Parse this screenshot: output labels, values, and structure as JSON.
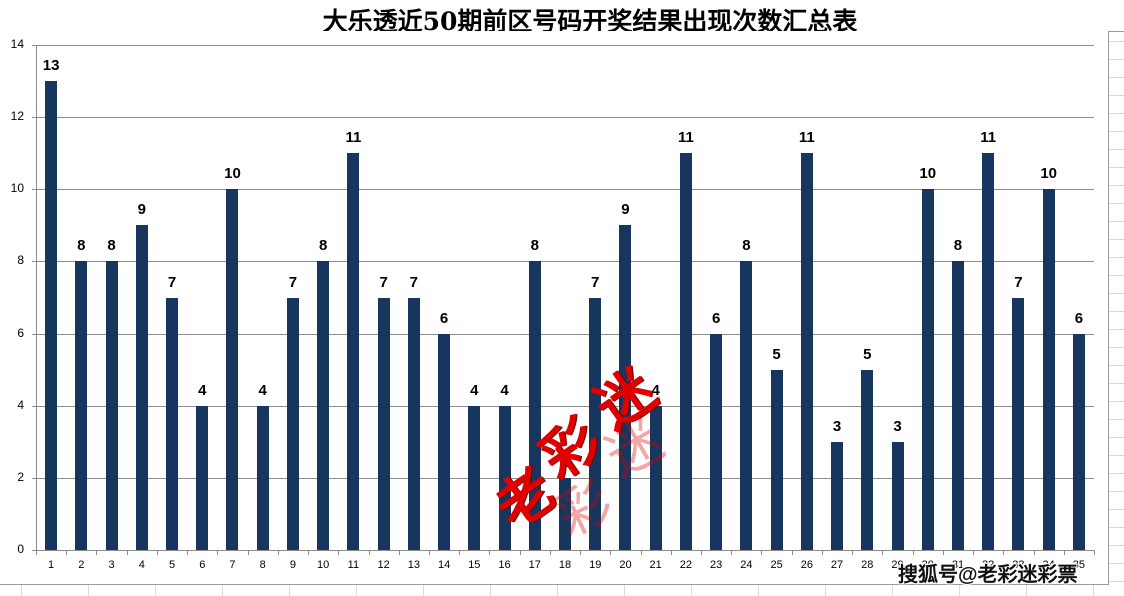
{
  "chart_data": {
    "type": "bar",
    "title": "大乐透近50期前区号码开奖结果出现次数汇总表",
    "xlabel": "",
    "ylabel": "",
    "ylim": [
      0,
      14
    ],
    "yticks": [
      0,
      2,
      4,
      6,
      8,
      10,
      12,
      14
    ],
    "grid": true,
    "legend": "none",
    "bar_color": "#17365d",
    "categories": [
      "1",
      "2",
      "3",
      "4",
      "5",
      "6",
      "7",
      "8",
      "9",
      "10",
      "11",
      "12",
      "13",
      "14",
      "15",
      "16",
      "17",
      "18",
      "19",
      "20",
      "21",
      "22",
      "23",
      "24",
      "25",
      "26",
      "27",
      "28",
      "29",
      "30",
      "31",
      "32",
      "33",
      "34",
      "35"
    ],
    "values": [
      13,
      8,
      8,
      9,
      7,
      4,
      10,
      4,
      7,
      8,
      11,
      7,
      7,
      6,
      4,
      4,
      8,
      2,
      7,
      9,
      4,
      11,
      6,
      8,
      5,
      11,
      3,
      5,
      3,
      10,
      8,
      11,
      7,
      10,
      6
    ],
    "data_labels": true
  },
  "watermark": {
    "bottom_text": "搜狐号@老彩迷彩票",
    "stamp_chars": [
      "老",
      "彩",
      "迷"
    ]
  }
}
